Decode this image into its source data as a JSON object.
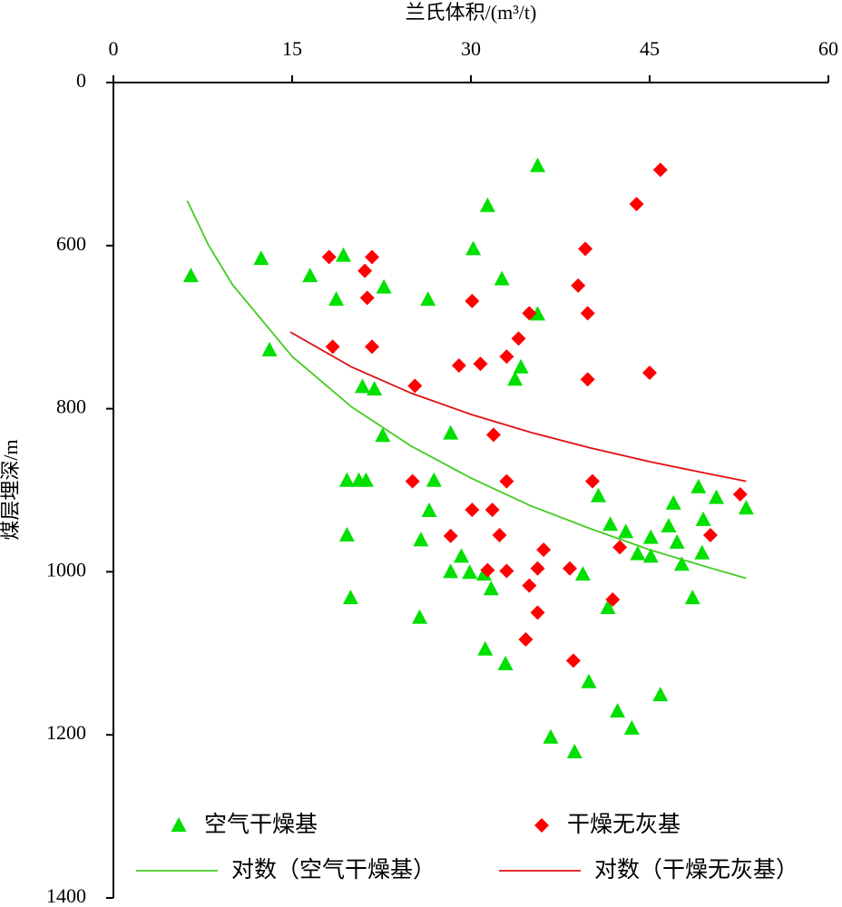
{
  "chart_data": {
    "type": "scatter",
    "xlabel": "兰氏体积/(m³/t)",
    "ylabel": "煤层埋深/m",
    "xlim": [
      0,
      60
    ],
    "xticks": [
      0,
      15,
      30,
      45,
      60
    ],
    "ylim": [
      400,
      1400
    ],
    "y_inverted": true,
    "yticks": [
      {
        "value": 400,
        "label": "0"
      },
      600,
      800,
      1000,
      1200,
      1400
    ],
    "legend": "bottom",
    "series": [
      {
        "name": "空气干燥基",
        "color": "#00e000",
        "mode": "markers",
        "marker": "triangle",
        "x": [
          6.5,
          12.4,
          13.1,
          16.5,
          18.7,
          19.3,
          22.7,
          20.9,
          21.9,
          22.6,
          19.6,
          20.6,
          21.2,
          19.6,
          19.9,
          26.4,
          26.9,
          26.5,
          25.8,
          25.7,
          28.3,
          30.2,
          31.4,
          32.6,
          34.2,
          33.7,
          35.6,
          35.6,
          28.3,
          29.2,
          29.9,
          31.1,
          31.7,
          31.2,
          32.9,
          36.7,
          38.7,
          39.4,
          39.9,
          40.7,
          41.7,
          43.0,
          44.0,
          45.1,
          45.1,
          41.5,
          42.3,
          43.5,
          45.9,
          47.0,
          46.6,
          47.3,
          47.7,
          48.6,
          49.1,
          49.5,
          49.4,
          50.6,
          53.1
        ],
        "values": [
          637,
          616,
          728,
          637,
          666,
          612,
          651,
          773,
          776,
          833,
          888,
          888,
          888,
          955,
          1032,
          666,
          888,
          925,
          961,
          1056,
          830,
          604,
          551,
          641,
          749,
          764,
          502,
          684,
          1000,
          981,
          1001,
          1003,
          1021,
          1095,
          1113,
          1203,
          1221,
          1003,
          1135,
          907,
          942,
          951,
          978,
          981,
          958,
          1044,
          1171,
          1192,
          1151,
          916,
          944,
          964,
          991,
          1032,
          896,
          936,
          977,
          909,
          922
        ]
      },
      {
        "name": "干燥无灰基",
        "color": "#ff0000",
        "mode": "markers",
        "marker": "diamond",
        "x": [
          18.1,
          18.4,
          21.1,
          21.7,
          21.3,
          21.7,
          25.3,
          25.1,
          28.3,
          29.0,
          30.8,
          30.1,
          30.1,
          31.8,
          31.9,
          32.4,
          33.0,
          34.0,
          34.9,
          33.0,
          31.4,
          33.0,
          36.1,
          35.6,
          34.9,
          35.6,
          34.6,
          38.3,
          38.6,
          39.6,
          39.0,
          39.8,
          39.8,
          40.2,
          41.9,
          42.5,
          43.9,
          45.9,
          45.0,
          50.1,
          52.6
        ],
        "values": [
          614,
          724,
          631,
          614,
          664,
          724,
          772,
          889,
          956,
          747,
          745,
          668,
          924,
          924,
          832,
          955,
          736,
          714,
          683,
          889,
          998,
          999,
          973,
          996,
          1017,
          1050,
          1083,
          996,
          1109,
          604,
          649,
          683,
          764,
          889,
          1034,
          970,
          549,
          507,
          756,
          955,
          905
        ]
      },
      {
        "name": "对数（空气干燥基）",
        "color": "#44cc22",
        "mode": "line",
        "x": [
          6.2,
          8,
          10,
          15,
          20,
          25,
          30,
          35,
          40,
          45,
          50,
          53.1
        ],
        "values": [
          545,
          600,
          648,
          736,
          798,
          846,
          885,
          919,
          947,
          973,
          995,
          1008
        ]
      },
      {
        "name": "对数（干燥无灰基）",
        "color": "#e01010",
        "mode": "line",
        "x": [
          14.85,
          20,
          25,
          30,
          35,
          40,
          45,
          50,
          53.1
        ],
        "values": [
          706,
          749,
          781,
          807,
          829,
          848,
          865,
          880,
          889
        ]
      }
    ]
  }
}
